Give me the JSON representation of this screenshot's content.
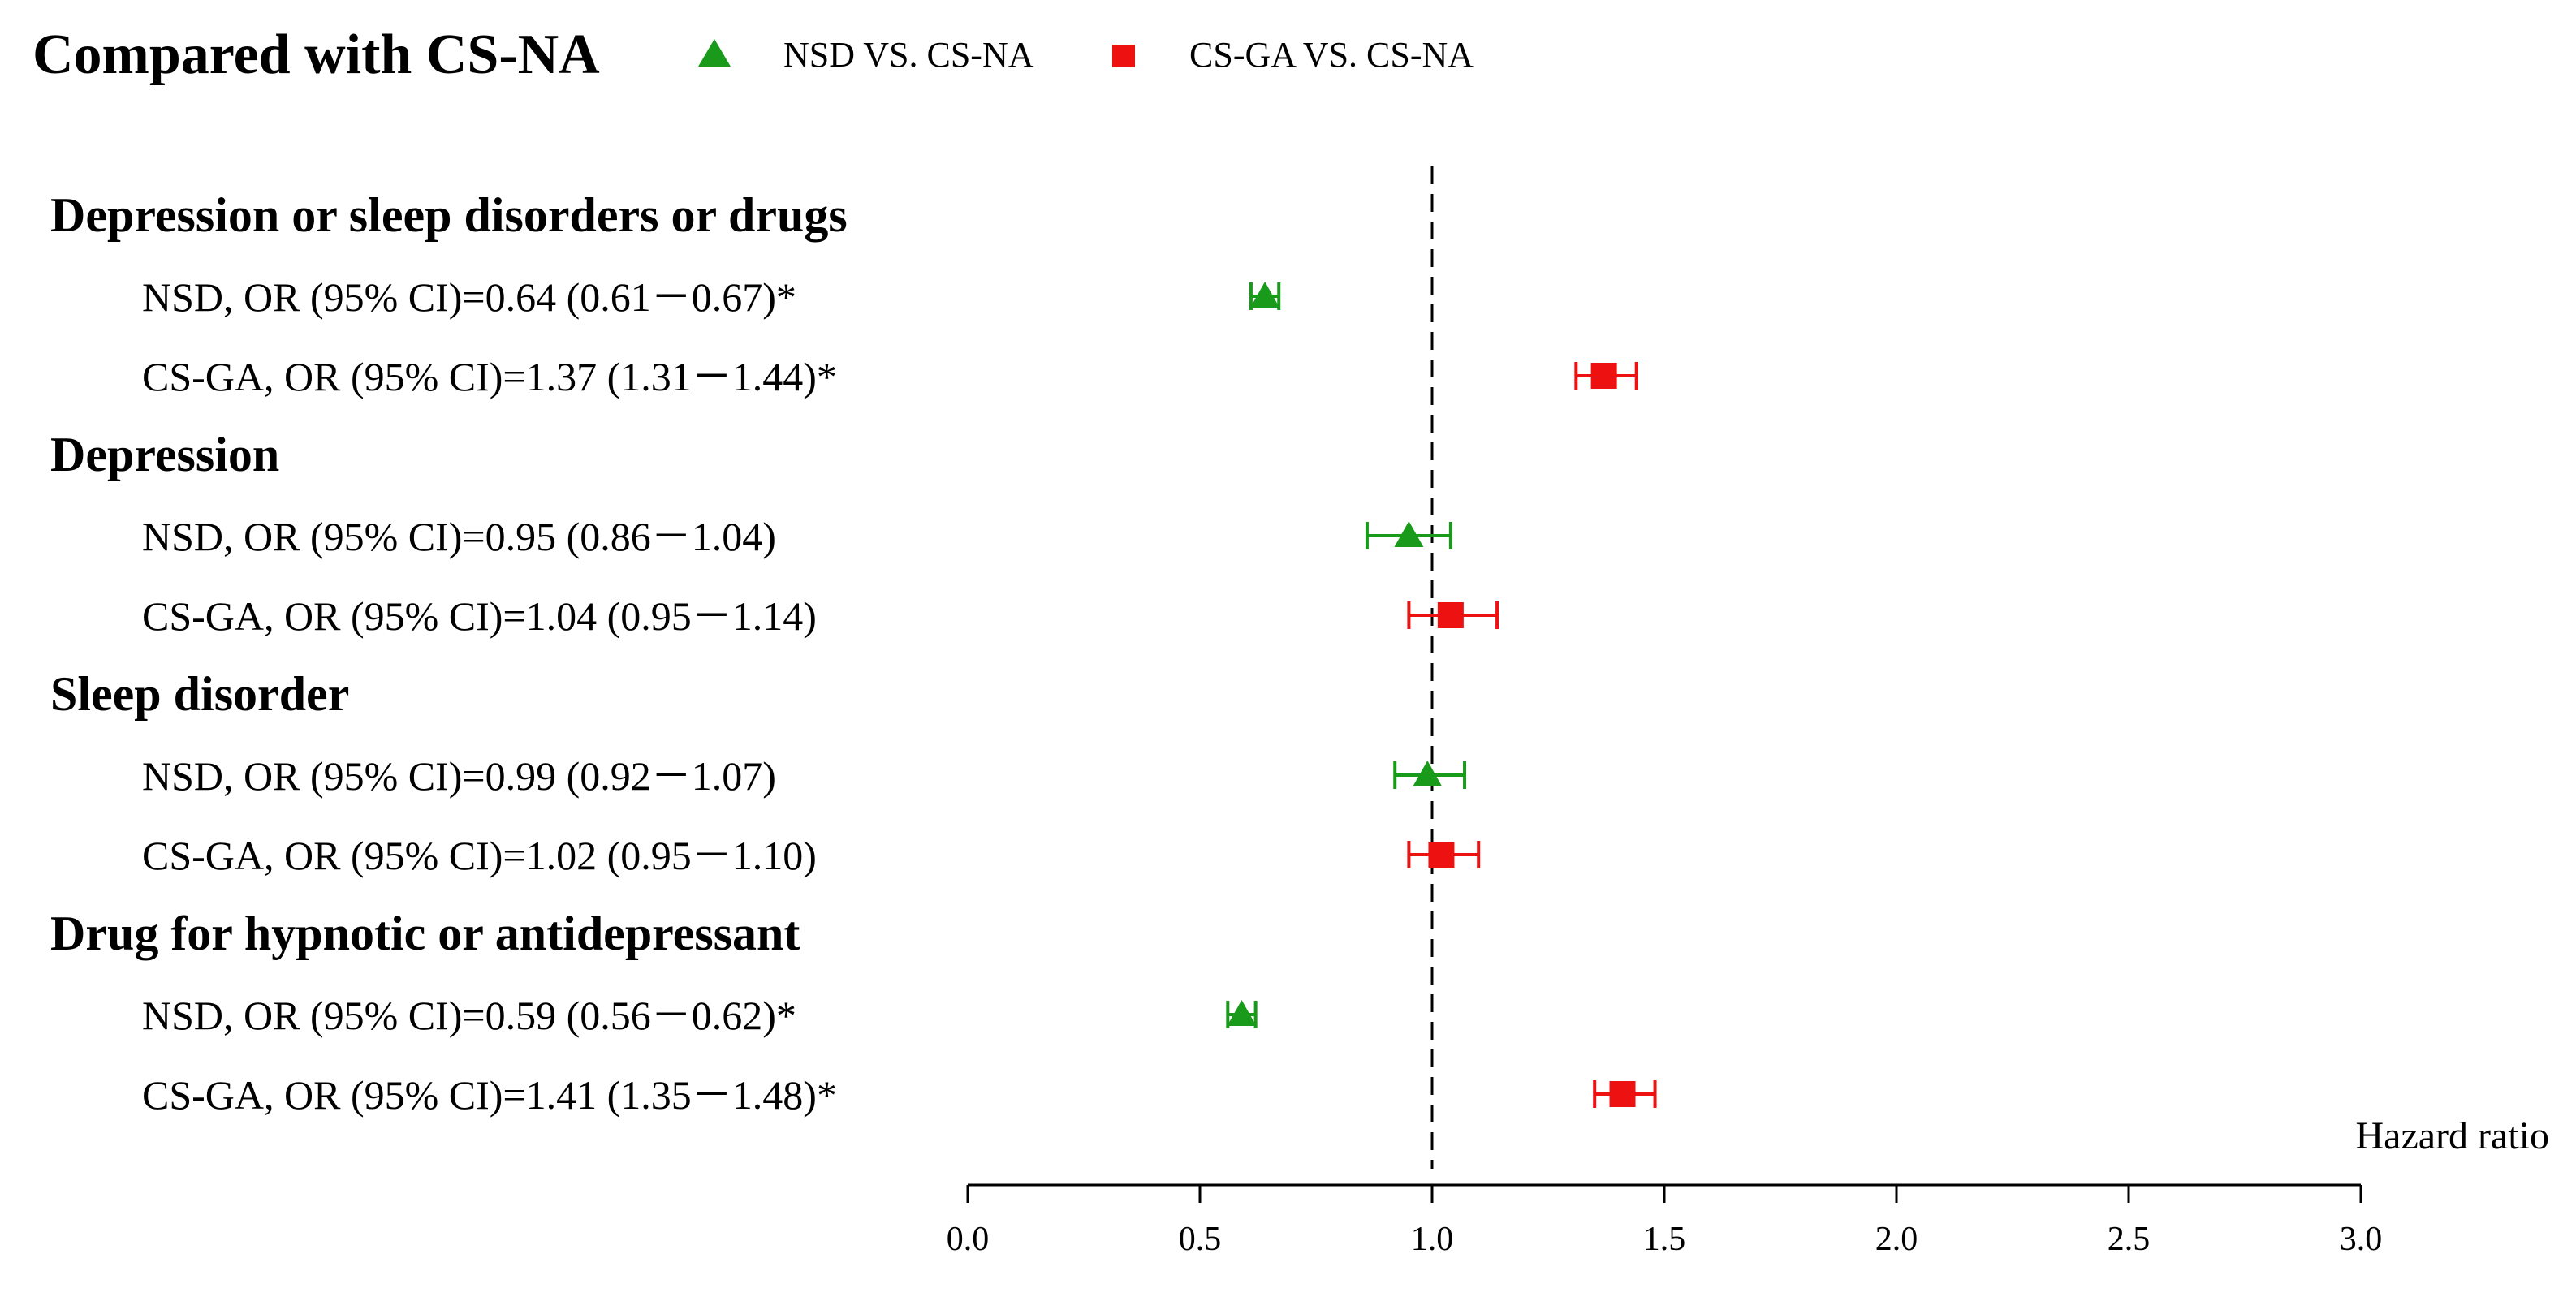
{
  "header": {
    "title": "Compared with CS-NA"
  },
  "legend": [
    {
      "label": "NSD VS. CS-NA",
      "marker": "triangle",
      "color": "#1a9a1a"
    },
    {
      "label": "CS-GA VS. CS-NA",
      "marker": "square",
      "color": "#ee1111"
    }
  ],
  "chart_data": {
    "type": "forest",
    "xlabel": "Hazard ratio",
    "xlim": [
      0.0,
      3.0
    ],
    "xticks": [
      "0.0",
      "0.5",
      "1.0",
      "1.5",
      "2.0",
      "2.5",
      "3.0"
    ],
    "reference_line": 1.0,
    "groups": [
      {
        "label": "Depression or sleep disorders or drugs",
        "rows": [
          {
            "label": "NSD, OR (95% CI)=0.64 (0.61－0.67)*",
            "series": "NSD VS. CS-NA",
            "or": 0.64,
            "lo": 0.61,
            "hi": 0.67
          },
          {
            "label": "CS-GA, OR (95% CI)=1.37 (1.31－1.44)*",
            "series": "CS-GA VS. CS-NA",
            "or": 1.37,
            "lo": 1.31,
            "hi": 1.44
          }
        ]
      },
      {
        "label": "Depression",
        "rows": [
          {
            "label": "NSD, OR (95% CI)=0.95 (0.86－1.04)",
            "series": "NSD VS. CS-NA",
            "or": 0.95,
            "lo": 0.86,
            "hi": 1.04
          },
          {
            "label": "CS-GA, OR (95% CI)=1.04 (0.95－1.14)",
            "series": "CS-GA VS. CS-NA",
            "or": 1.04,
            "lo": 0.95,
            "hi": 1.14
          }
        ]
      },
      {
        "label": "Sleep disorder",
        "rows": [
          {
            "label": "NSD, OR (95% CI)=0.99 (0.92－1.07)",
            "series": "NSD VS. CS-NA",
            "or": 0.99,
            "lo": 0.92,
            "hi": 1.07
          },
          {
            "label": "CS-GA, OR (95% CI)=1.02 (0.95－1.10)",
            "series": "CS-GA VS. CS-NA",
            "or": 1.02,
            "lo": 0.95,
            "hi": 1.1
          }
        ]
      },
      {
        "label": "Drug for hypnotic or antidepressant",
        "rows": [
          {
            "label": "NSD, OR (95% CI)=0.59 (0.56－0.62)*",
            "series": "NSD VS. CS-NA",
            "or": 0.59,
            "lo": 0.56,
            "hi": 0.62
          },
          {
            "label": "CS-GA, OR (95% CI)=1.41 (1.35－1.48)*",
            "series": "CS-GA VS. CS-NA",
            "or": 1.41,
            "lo": 1.35,
            "hi": 1.48
          }
        ]
      }
    ]
  }
}
